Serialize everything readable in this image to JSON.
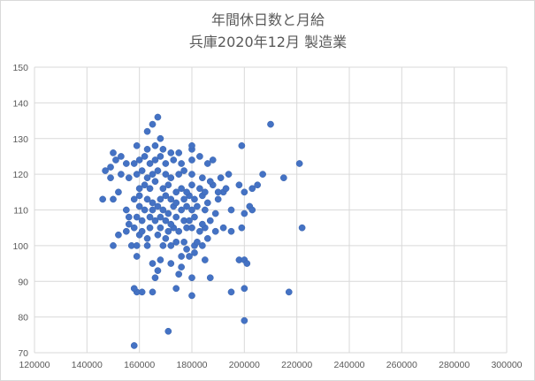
{
  "chart_data": {
    "type": "scatter",
    "title": [
      "年間休日数と月給",
      "兵庫2020年12月 製造業"
    ],
    "xlabel": "",
    "ylabel": "",
    "xlim": [
      120000,
      300000
    ],
    "ylim": [
      70,
      150
    ],
    "x_ticks": [
      "120000",
      "140000",
      "160000",
      "180000",
      "200000",
      "220000",
      "240000",
      "260000",
      "280000",
      "300000"
    ],
    "y_ticks": [
      "70",
      "80",
      "90",
      "100",
      "110",
      "120",
      "130",
      "140",
      "150"
    ],
    "grid": true,
    "legend": "none",
    "marker_color": "#4472c4",
    "series": [
      {
        "points": [
          [
            158000,
            72
          ],
          [
            171000,
            76
          ],
          [
            200000,
            79
          ],
          [
            159000,
            87
          ],
          [
            158000,
            88
          ],
          [
            161000,
            87
          ],
          [
            165000,
            87
          ],
          [
            174000,
            88
          ],
          [
            180000,
            86
          ],
          [
            195000,
            87
          ],
          [
            200000,
            88
          ],
          [
            217000,
            87
          ],
          [
            166000,
            91
          ],
          [
            175000,
            92
          ],
          [
            180000,
            91
          ],
          [
            187000,
            91
          ],
          [
            167000,
            93
          ],
          [
            165000,
            95
          ],
          [
            168000,
            96
          ],
          [
            172000,
            95
          ],
          [
            176000,
            94
          ],
          [
            185000,
            96
          ],
          [
            198000,
            96
          ],
          [
            200000,
            96
          ],
          [
            201000,
            95
          ],
          [
            159000,
            97
          ],
          [
            176000,
            97
          ],
          [
            179000,
            97
          ],
          [
            181000,
            98
          ],
          [
            150000,
            100
          ],
          [
            157000,
            100
          ],
          [
            159000,
            100
          ],
          [
            163000,
            100
          ],
          [
            169000,
            100
          ],
          [
            172000,
            100
          ],
          [
            178000,
            99
          ],
          [
            181000,
            100
          ],
          [
            184000,
            100
          ],
          [
            152000,
            103
          ],
          [
            155000,
            104
          ],
          [
            160000,
            103
          ],
          [
            163000,
            102
          ],
          [
            167000,
            103
          ],
          [
            170000,
            102
          ],
          [
            174000,
            101
          ],
          [
            177000,
            101
          ],
          [
            182000,
            101
          ],
          [
            186000,
            102
          ],
          [
            189000,
            104
          ],
          [
            156000,
            106
          ],
          [
            158000,
            105
          ],
          [
            161000,
            104
          ],
          [
            164000,
            105
          ],
          [
            168000,
            105
          ],
          [
            171000,
            104
          ],
          [
            173000,
            105
          ],
          [
            175000,
            104
          ],
          [
            178000,
            105
          ],
          [
            180000,
            105
          ],
          [
            183000,
            104
          ],
          [
            185000,
            105
          ],
          [
            192000,
            105
          ],
          [
            195000,
            104
          ],
          [
            199000,
            105
          ],
          [
            222000,
            105
          ],
          [
            156000,
            108
          ],
          [
            159000,
            108
          ],
          [
            161000,
            107
          ],
          [
            164000,
            108
          ],
          [
            166000,
            107
          ],
          [
            168000,
            108
          ],
          [
            170000,
            107
          ],
          [
            172000,
            106
          ],
          [
            174000,
            108
          ],
          [
            177000,
            107
          ],
          [
            179000,
            107
          ],
          [
            181000,
            108
          ],
          [
            184000,
            106
          ],
          [
            187000,
            107
          ],
          [
            200000,
            109
          ],
          [
            202000,
            111
          ],
          [
            203000,
            110
          ],
          [
            155000,
            110
          ],
          [
            160000,
            111
          ],
          [
            162000,
            110
          ],
          [
            165000,
            110
          ],
          [
            167000,
            111
          ],
          [
            169000,
            110
          ],
          [
            171000,
            109
          ],
          [
            173000,
            111
          ],
          [
            176000,
            110
          ],
          [
            178000,
            111
          ],
          [
            180000,
            110
          ],
          [
            182000,
            111
          ],
          [
            185000,
            110
          ],
          [
            189000,
            109
          ],
          [
            195000,
            110
          ],
          [
            158000,
            113
          ],
          [
            160000,
            114
          ],
          [
            163000,
            113
          ],
          [
            165000,
            112
          ],
          [
            168000,
            113
          ],
          [
            170000,
            114
          ],
          [
            172000,
            113
          ],
          [
            174000,
            112
          ],
          [
            177000,
            113
          ],
          [
            179000,
            114
          ],
          [
            181000,
            113
          ],
          [
            184000,
            114
          ],
          [
            186000,
            112
          ],
          [
            190000,
            113
          ],
          [
            192000,
            115
          ],
          [
            150000,
            113
          ],
          [
            152000,
            115
          ],
          [
            146000,
            113
          ],
          [
            147000,
            121
          ],
          [
            160000,
            116
          ],
          [
            162000,
            117
          ],
          [
            164000,
            116
          ],
          [
            166000,
            118
          ],
          [
            169000,
            116
          ],
          [
            171000,
            117
          ],
          [
            174000,
            115
          ],
          [
            176000,
            116
          ],
          [
            178000,
            115
          ],
          [
            180000,
            117
          ],
          [
            183000,
            116
          ],
          [
            185000,
            115
          ],
          [
            188000,
            117
          ],
          [
            190000,
            115
          ],
          [
            193000,
            116
          ],
          [
            200000,
            115
          ],
          [
            203000,
            116
          ],
          [
            205000,
            117
          ],
          [
            149000,
            119
          ],
          [
            153000,
            120
          ],
          [
            156000,
            119
          ],
          [
            159000,
            120
          ],
          [
            161000,
            121
          ],
          [
            163000,
            119
          ],
          [
            165000,
            120
          ],
          [
            167000,
            121
          ],
          [
            170000,
            120
          ],
          [
            172000,
            119
          ],
          [
            175000,
            120
          ],
          [
            177000,
            121
          ],
          [
            180000,
            120
          ],
          [
            184000,
            119
          ],
          [
            187000,
            118
          ],
          [
            191000,
            119
          ],
          [
            194000,
            120
          ],
          [
            198000,
            117
          ],
          [
            215000,
            119
          ],
          [
            207000,
            120
          ],
          [
            149000,
            122
          ],
          [
            151000,
            124
          ],
          [
            153000,
            125
          ],
          [
            155000,
            123
          ],
          [
            158000,
            123
          ],
          [
            160000,
            124
          ],
          [
            162000,
            125
          ],
          [
            164000,
            123
          ],
          [
            166000,
            124
          ],
          [
            168000,
            125
          ],
          [
            170000,
            123
          ],
          [
            173000,
            124
          ],
          [
            176000,
            123
          ],
          [
            180000,
            124
          ],
          [
            183000,
            125
          ],
          [
            186000,
            123
          ],
          [
            188000,
            124
          ],
          [
            221000,
            123
          ],
          [
            150000,
            126
          ],
          [
            159000,
            128
          ],
          [
            163000,
            127
          ],
          [
            166000,
            128
          ],
          [
            169000,
            127
          ],
          [
            172000,
            126
          ],
          [
            175000,
            126
          ],
          [
            180000,
            127
          ],
          [
            180000,
            128
          ],
          [
            199000,
            128
          ],
          [
            163000,
            132
          ],
          [
            168000,
            130
          ],
          [
            165000,
            134
          ],
          [
            167000,
            136
          ],
          [
            210000,
            134
          ]
        ]
      }
    ]
  }
}
